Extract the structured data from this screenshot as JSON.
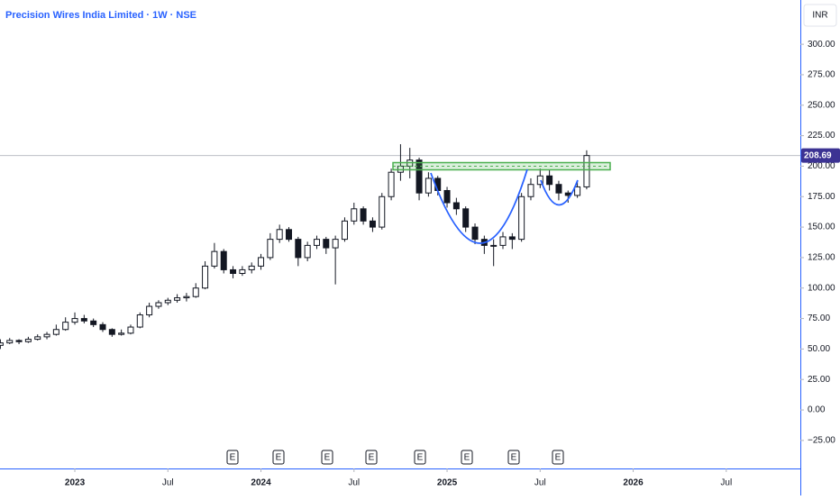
{
  "chart_data": {
    "type": "candlestick",
    "title": "Precision Wires India Limited · 1W · NSE",
    "currency": "INR",
    "last_price": 208.69,
    "earnings_markers": [
      "E",
      "E",
      "E",
      "E",
      "E",
      "E",
      "E",
      "E"
    ],
    "x": [
      2022.6,
      2022.65,
      2022.7,
      2022.75,
      2022.8,
      2022.85,
      2022.9,
      2022.95,
      2023.0,
      2023.05,
      2023.1,
      2023.15,
      2023.2,
      2023.25,
      2023.3,
      2023.35,
      2023.4,
      2023.45,
      2023.5,
      2023.55,
      2023.6,
      2023.65,
      2023.7,
      2023.75,
      2023.8,
      2023.85,
      2023.9,
      2023.95,
      2024.0,
      2024.05,
      2024.1,
      2024.15,
      2024.2,
      2024.25,
      2024.3,
      2024.35,
      2024.4,
      2024.45,
      2024.5,
      2024.55,
      2024.6,
      2024.65,
      2024.7,
      2024.75,
      2024.8,
      2024.85,
      2024.9,
      2024.95,
      2025.0,
      2025.05,
      2025.1,
      2025.15,
      2025.2,
      2025.25,
      2025.3,
      2025.35,
      2025.4,
      2025.45,
      2025.5,
      2025.55,
      2025.6,
      2025.65,
      2025.7,
      2025.75
    ],
    "open": [
      53,
      55,
      57,
      56,
      58,
      60,
      62,
      66,
      72,
      75,
      73,
      70,
      66,
      62,
      63,
      68,
      78,
      85,
      88,
      90,
      92,
      93,
      100,
      118,
      130,
      115,
      112,
      115,
      118,
      125,
      140,
      148,
      140,
      125,
      135,
      140,
      133,
      140,
      155,
      165,
      155,
      150,
      175,
      195,
      200,
      205,
      178,
      190,
      180,
      170,
      165,
      150,
      140,
      135,
      135,
      142,
      140,
      175,
      185,
      192,
      185,
      178,
      176,
      183
    ],
    "high": [
      58,
      59,
      58,
      60,
      62,
      64,
      70,
      76,
      80,
      78,
      75,
      72,
      67,
      66,
      70,
      80,
      88,
      90,
      92,
      95,
      96,
      104,
      122,
      137,
      132,
      118,
      118,
      121,
      128,
      145,
      152,
      150,
      142,
      138,
      143,
      142,
      143,
      158,
      170,
      167,
      158,
      178,
      198,
      218,
      215,
      207,
      195,
      192,
      183,
      174,
      167,
      153,
      143,
      140,
      146,
      145,
      178,
      190,
      198,
      197,
      188,
      180,
      188,
      213
    ],
    "low": [
      50,
      54,
      54,
      55,
      57,
      58,
      61,
      65,
      70,
      71,
      68,
      64,
      60,
      61,
      62,
      67,
      76,
      83,
      86,
      88,
      89,
      92,
      99,
      116,
      112,
      108,
      110,
      112,
      115,
      123,
      137,
      138,
      118,
      122,
      132,
      128,
      103,
      138,
      152,
      152,
      146,
      148,
      172,
      188,
      190,
      172,
      175,
      176,
      166,
      160,
      146,
      136,
      128,
      118,
      132,
      132,
      138,
      172,
      182,
      180,
      172,
      170,
      174,
      181
    ],
    "close": [
      55,
      57,
      56,
      58,
      60,
      62,
      66,
      72,
      75,
      73,
      70,
      66,
      62,
      63,
      68,
      78,
      85,
      88,
      90,
      92,
      93,
      100,
      118,
      130,
      115,
      112,
      115,
      118,
      125,
      140,
      148,
      140,
      125,
      135,
      140,
      133,
      140,
      155,
      165,
      155,
      150,
      175,
      195,
      200,
      205,
      178,
      190,
      180,
      170,
      165,
      150,
      140,
      135,
      135,
      142,
      140,
      175,
      185,
      192,
      185,
      178,
      176,
      183,
      208.69
    ],
    "xlim": [
      2022.598,
      2026.898
    ],
    "ylim": [
      -48,
      336.3
    ],
    "xticks": [
      2023,
      {
        "value": 2023.5,
        "label": "Jul"
      },
      2024,
      {
        "value": 2024.5,
        "label": "Jul"
      },
      2025,
      {
        "value": 2025.5,
        "label": "Jul"
      },
      2026,
      {
        "value": 2026.5,
        "label": "Jul"
      }
    ],
    "yticks": [
      {
        "value": 300,
        "label": "300.00"
      },
      {
        "value": 275,
        "label": "275.00"
      },
      {
        "value": 250,
        "label": "250.00"
      },
      {
        "value": 225,
        "label": "225.00"
      },
      {
        "value": 200,
        "label": "200.00"
      },
      {
        "value": 175,
        "label": "175.00"
      },
      {
        "value": 150,
        "label": "150.00"
      },
      {
        "value": 125,
        "label": "125.00"
      },
      {
        "value": 100,
        "label": "100.00"
      },
      {
        "value": 75,
        "label": "75.00"
      },
      {
        "value": 50,
        "label": "50.00"
      },
      {
        "value": 25,
        "label": "25.00"
      },
      {
        "value": 0,
        "label": "0.00"
      },
      {
        "value": -25,
        "label": "−25.00"
      }
    ],
    "up_color": "#ffffff",
    "down_color": "#131722"
  }
}
